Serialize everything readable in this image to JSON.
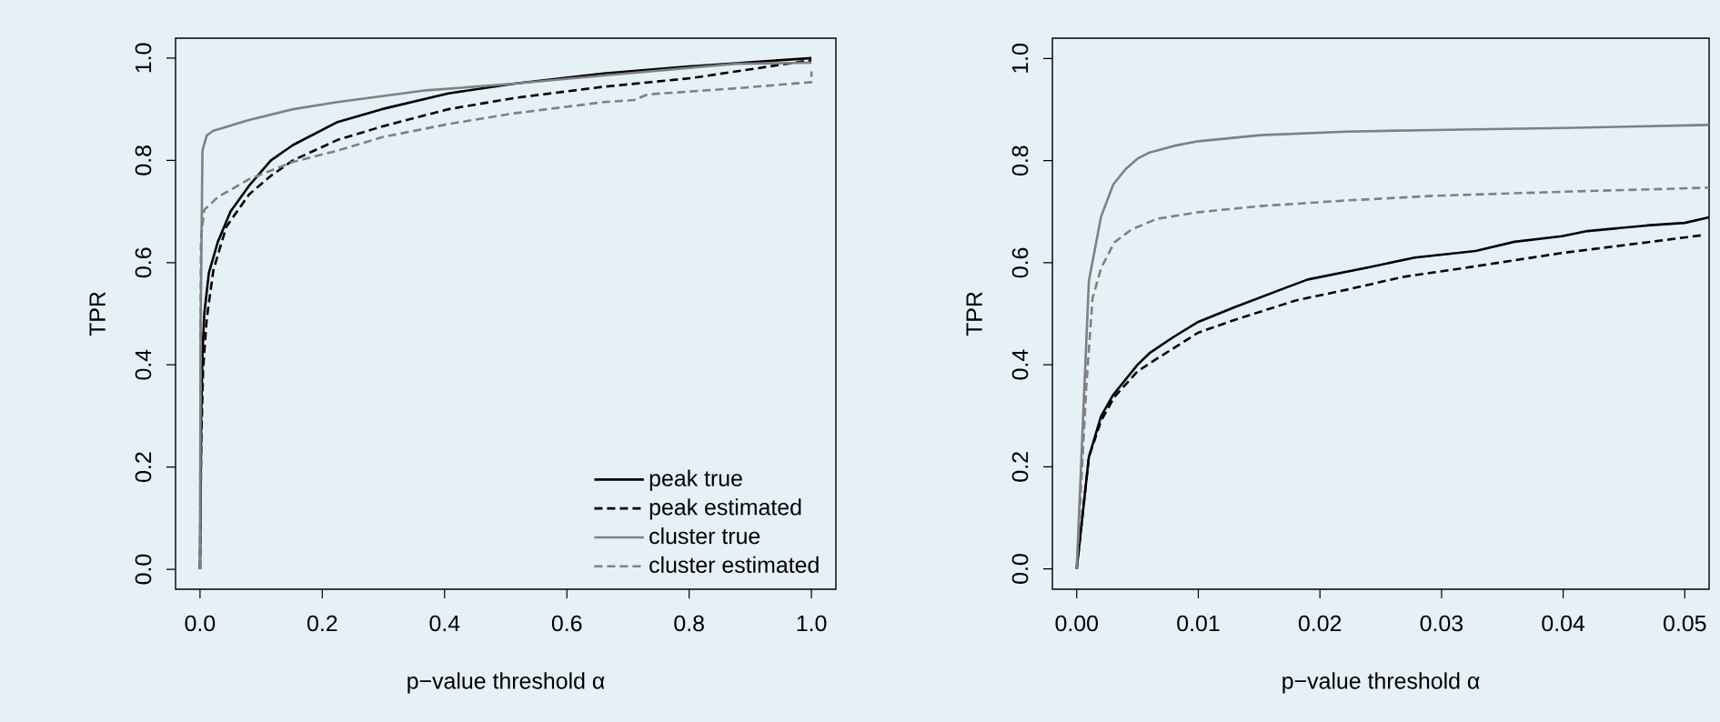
{
  "chart_data": [
    {
      "type": "line",
      "xlabel": "p−value threshold α",
      "ylabel": "TPR",
      "xlim": [
        -0.04,
        1.04
      ],
      "ylim": [
        -0.039,
        1.039
      ],
      "xticks": [
        {
          "value": 0,
          "label": "0.0"
        },
        {
          "value": 0.2,
          "label": "0.2"
        },
        {
          "value": 0.4,
          "label": "0.4"
        },
        {
          "value": 0.6,
          "label": "0.6"
        },
        {
          "value": 0.8,
          "label": "0.8"
        },
        {
          "value": 1,
          "label": "1.0"
        }
      ],
      "yticks": [
        {
          "value": 0,
          "label": "0.0"
        },
        {
          "value": 0.2,
          "label": "0.2"
        },
        {
          "value": 0.4,
          "label": "0.4"
        },
        {
          "value": 0.6,
          "label": "0.6"
        },
        {
          "value": 0.8,
          "label": "0.8"
        },
        {
          "value": 1,
          "label": "1.0"
        }
      ],
      "legend": "bottom right",
      "series": [
        {
          "name": "peak true",
          "color": "#000000",
          "line_style": "solid",
          "x": [
            0,
            0.002,
            0.004,
            0.007,
            0.0145,
            0.029,
            0.05,
            0.08,
            0.116,
            0.152,
            0.225,
            0.297,
            0.406,
            0.514,
            0.66,
            0.804,
            1.0
          ],
          "values": [
            0,
            0.3,
            0.42,
            0.5,
            0.58,
            0.64,
            0.7,
            0.75,
            0.8,
            0.83,
            0.875,
            0.9,
            0.931,
            0.95,
            0.97,
            0.984,
            1.0
          ]
        },
        {
          "name": "peak estimated",
          "color": "#000000",
          "line_style": "dashed",
          "x": [
            0,
            0.002,
            0.005,
            0.011,
            0.022,
            0.043,
            0.08,
            0.116,
            0.152,
            0.225,
            0.297,
            0.406,
            0.514,
            0.66,
            0.804,
            1.0
          ],
          "values": [
            0,
            0.25,
            0.39,
            0.49,
            0.586,
            0.67,
            0.733,
            0.77,
            0.8,
            0.84,
            0.866,
            0.9,
            0.922,
            0.944,
            0.961,
            0.996
          ]
        },
        {
          "name": "cluster true",
          "color": "#808080",
          "line_style": "solid",
          "x": [
            0,
            0.001,
            0.004,
            0.011,
            0.022,
            0.08,
            0.152,
            0.225,
            0.37,
            0.514,
            0.66,
            0.877,
            1.0
          ],
          "values": [
            0,
            0.474,
            0.819,
            0.849,
            0.858,
            0.879,
            0.9,
            0.914,
            0.937,
            0.95,
            0.966,
            0.989,
            0.991
          ]
        },
        {
          "name": "cluster estimated",
          "color": "#808080",
          "line_style": "dashed",
          "x": [
            0,
            0.0015,
            0.007,
            0.029,
            0.08,
            0.152,
            0.225,
            0.297,
            0.406,
            0.514,
            0.66,
            0.71,
            0.732,
            0.877,
            1.0,
            1.0
          ],
          "values": [
            0,
            0.647,
            0.703,
            0.728,
            0.763,
            0.797,
            0.819,
            0.845,
            0.871,
            0.892,
            0.914,
            0.918,
            0.929,
            0.941,
            0.953,
            0.974
          ]
        }
      ]
    },
    {
      "type": "line",
      "xlabel": "p−value threshold α",
      "ylabel": "TPR",
      "xlim": [
        -0.002,
        0.052
      ],
      "ylim": [
        -0.04,
        1.04
      ],
      "xticks": [
        {
          "value": 0,
          "label": "0.00"
        },
        {
          "value": 0.01,
          "label": "0.01"
        },
        {
          "value": 0.02,
          "label": "0.02"
        },
        {
          "value": 0.03,
          "label": "0.03"
        },
        {
          "value": 0.04,
          "label": "0.04"
        },
        {
          "value": 0.05,
          "label": "0.05"
        }
      ],
      "yticks": [
        {
          "value": 0,
          "label": "0.0"
        },
        {
          "value": 0.2,
          "label": "0.2"
        },
        {
          "value": 0.4,
          "label": "0.4"
        },
        {
          "value": 0.6,
          "label": "0.6"
        },
        {
          "value": 0.8,
          "label": "0.8"
        },
        {
          "value": 1,
          "label": "1.0"
        }
      ],
      "series": [
        {
          "color": "#000000",
          "line_style": "solid",
          "x": [
            0,
            0.001,
            0.002,
            0.003,
            0.005,
            0.006,
            0.008,
            0.01,
            0.013,
            0.0172,
            0.019,
            0.024,
            0.0278,
            0.0328,
            0.036,
            0.0399,
            0.042,
            0.0469,
            0.05,
            0.052
          ],
          "values": [
            0,
            0.219,
            0.299,
            0.341,
            0.4,
            0.423,
            0.455,
            0.484,
            0.513,
            0.551,
            0.567,
            0.591,
            0.61,
            0.623,
            0.641,
            0.652,
            0.662,
            0.673,
            0.678,
            0.689
          ]
        },
        {
          "color": "#000000",
          "line_style": "dashed",
          "x": [
            0,
            0.001,
            0.002,
            0.0031,
            0.005,
            0.0066,
            0.01,
            0.013,
            0.018,
            0.0222,
            0.0268,
            0.0328,
            0.0399,
            0.0469,
            0.0515
          ],
          "values": [
            0,
            0.219,
            0.29,
            0.337,
            0.387,
            0.412,
            0.463,
            0.488,
            0.526,
            0.547,
            0.572,
            0.593,
            0.619,
            0.64,
            0.654
          ]
        },
        {
          "color": "#808080",
          "line_style": "solid",
          "x": [
            0,
            0.001,
            0.002,
            0.003,
            0.004,
            0.005,
            0.006,
            0.008,
            0.01,
            0.0151,
            0.0222,
            0.0293,
            0.0399,
            0.052
          ],
          "values": [
            0,
            0.564,
            0.69,
            0.753,
            0.783,
            0.804,
            0.816,
            0.829,
            0.838,
            0.85,
            0.857,
            0.86,
            0.864,
            0.87
          ]
        },
        {
          "color": "#808080",
          "line_style": "dashed",
          "x": [
            0,
            0.0008,
            0.0013,
            0.002,
            0.0031,
            0.0045,
            0.0066,
            0.01,
            0.0151,
            0.0222,
            0.0293,
            0.0399,
            0.052
          ],
          "values": [
            0,
            0.362,
            0.53,
            0.589,
            0.64,
            0.665,
            0.686,
            0.699,
            0.711,
            0.722,
            0.731,
            0.739,
            0.747
          ]
        }
      ]
    }
  ]
}
